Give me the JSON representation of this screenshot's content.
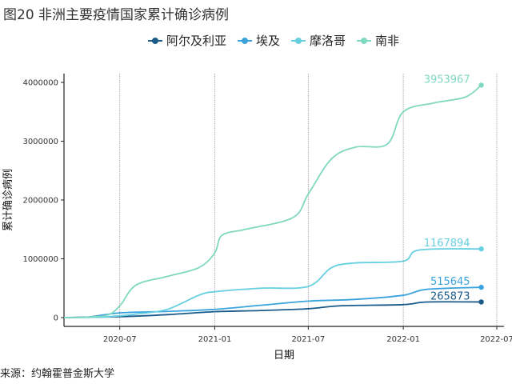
{
  "title": "图20 非洲主要疫情国家累计确诊病例",
  "source": "来源：约翰霍普金斯大学",
  "chart_data": {
    "type": "line",
    "xlabel": "日期",
    "ylabel": "累计确诊病例",
    "x_ticks": [
      "2020-07",
      "2021-01",
      "2021-07",
      "2022-01",
      "2022-07"
    ],
    "y_ticks": [
      0,
      1000000,
      2000000,
      3000000,
      4000000
    ],
    "y_tick_labels": [
      "0",
      "1000000",
      "2000000",
      "3000000",
      "4000000"
    ],
    "xlim": [
      "2020-03-15",
      "2022-07-15"
    ],
    "ylim": [
      -150000,
      4150000
    ],
    "grid": "vertical",
    "legend_position": "top",
    "series": [
      {
        "name": "阿尔及利亚",
        "color": "#1a5b8a",
        "end_label": "265873",
        "x": [
          "2020-03-15",
          "2020-05-01",
          "2020-07-01",
          "2020-10-01",
          "2021-01-01",
          "2021-04-01",
          "2021-07-01",
          "2021-09-01",
          "2022-01-01",
          "2022-02-15",
          "2022-06-01"
        ],
        "y": [
          0,
          8000,
          15000,
          50000,
          100000,
          120000,
          150000,
          200000,
          220000,
          265000,
          265873
        ]
      },
      {
        "name": "埃及",
        "color": "#3aa3dd",
        "end_label": "515645",
        "x": [
          "2020-03-15",
          "2020-05-01",
          "2020-07-01",
          "2020-10-01",
          "2021-01-01",
          "2021-04-01",
          "2021-07-01",
          "2021-10-01",
          "2022-01-01",
          "2022-02-15",
          "2022-06-01"
        ],
        "y": [
          0,
          10000,
          80000,
          105000,
          140000,
          210000,
          280000,
          310000,
          380000,
          480000,
          515645
        ]
      },
      {
        "name": "摩洛哥",
        "color": "#66cfe0",
        "end_label": "1167894",
        "x": [
          "2020-03-15",
          "2020-06-01",
          "2020-08-01",
          "2020-10-01",
          "2020-12-01",
          "2021-01-01",
          "2021-04-01",
          "2021-07-01",
          "2021-08-15",
          "2021-10-01",
          "2022-01-01",
          "2022-02-01",
          "2022-06-01"
        ],
        "y": [
          0,
          10000,
          60000,
          140000,
          380000,
          440000,
          500000,
          530000,
          850000,
          930000,
          960000,
          1150000,
          1167894
        ]
      },
      {
        "name": "南非",
        "color": "#7fd8c0",
        "end_label": "3953967",
        "x": [
          "2020-03-15",
          "2020-06-01",
          "2020-07-01",
          "2020-08-01",
          "2020-10-01",
          "2020-12-01",
          "2021-01-01",
          "2021-01-15",
          "2021-03-01",
          "2021-06-01",
          "2021-07-01",
          "2021-08-15",
          "2021-10-01",
          "2021-12-01",
          "2022-01-01",
          "2022-03-01",
          "2022-05-01",
          "2022-06-01"
        ],
        "y": [
          0,
          30000,
          200000,
          550000,
          700000,
          850000,
          1100000,
          1400000,
          1500000,
          1700000,
          2100000,
          2700000,
          2900000,
          2950000,
          3500000,
          3650000,
          3750000,
          3953967
        ]
      }
    ]
  }
}
